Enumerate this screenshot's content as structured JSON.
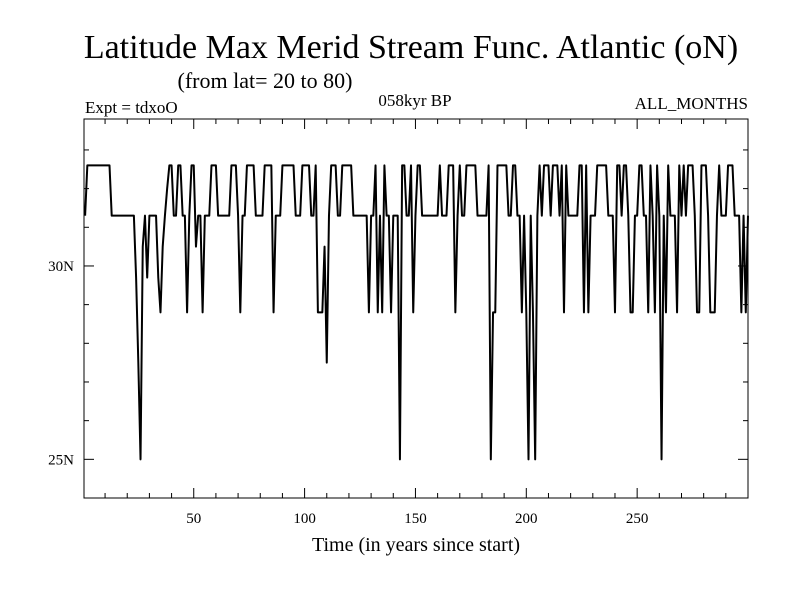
{
  "chart_data": {
    "type": "line",
    "title": "Latitude Max Merid Stream Func. Atlantic (oN)",
    "subtitle": "(from lat= 20 to 80)",
    "experiment_label": "Expt = tdxoO",
    "period_label": "058kyr BP",
    "months_label": "ALL_MONTHS",
    "xlabel": "Time (in years since start)",
    "ylabel": "",
    "xlim": [
      0.5,
      300
    ],
    "ylim": [
      24,
      33.8
    ],
    "x_ticks": [
      50,
      100,
      150,
      200,
      250
    ],
    "x_tick_labels": [
      "50",
      "100",
      "150",
      "200",
      "250"
    ],
    "y_ticks": [
      25,
      30
    ],
    "y_tick_labels": [
      "25N",
      "30N"
    ],
    "y_minor_step": 1,
    "x_minor_step": 10,
    "grid": false,
    "series": [
      {
        "values": [
          31.3,
          32.6,
          32.6,
          32.6,
          32.6,
          32.6,
          32.6,
          32.6,
          32.6,
          32.6,
          32.6,
          32.6,
          31.3,
          31.3,
          31.3,
          31.3,
          31.3,
          31.3,
          31.3,
          31.3,
          31.3,
          31.3,
          31.3,
          29.7,
          27.5,
          25.0,
          30.5,
          31.3,
          29.7,
          31.3,
          31.3,
          31.3,
          31.3,
          29.7,
          28.8,
          30.5,
          31.3,
          32.0,
          32.6,
          32.6,
          31.3,
          31.3,
          32.6,
          32.6,
          31.3,
          31.3,
          28.8,
          31.3,
          32.6,
          32.6,
          30.5,
          31.3,
          31.3,
          28.8,
          31.3,
          31.3,
          31.3,
          32.6,
          32.6,
          32.6,
          31.3,
          31.3,
          31.3,
          31.3,
          31.3,
          31.3,
          32.6,
          32.6,
          32.6,
          31.3,
          28.8,
          31.3,
          31.3,
          32.6,
          32.6,
          32.6,
          32.6,
          31.3,
          31.3,
          31.3,
          31.3,
          32.6,
          32.6,
          32.6,
          32.6,
          28.8,
          31.3,
          31.3,
          31.3,
          32.6,
          32.6,
          32.6,
          32.6,
          32.6,
          32.6,
          31.3,
          31.3,
          31.3,
          32.6,
          32.6,
          32.6,
          32.6,
          31.3,
          31.3,
          32.6,
          28.8,
          28.8,
          28.8,
          30.5,
          27.5,
          31.3,
          32.6,
          32.6,
          32.6,
          31.3,
          31.3,
          32.6,
          32.6,
          32.6,
          32.6,
          32.6,
          31.3,
          31.3,
          31.3,
          31.3,
          31.3,
          31.3,
          31.3,
          28.8,
          31.3,
          31.3,
          32.6,
          28.8,
          31.3,
          28.8,
          32.6,
          31.3,
          31.3,
          28.8,
          31.3,
          31.3,
          31.3,
          25.0,
          32.6,
          32.6,
          31.3,
          31.3,
          32.6,
          28.8,
          31.3,
          32.6,
          32.6,
          31.3,
          31.3,
          31.3,
          31.3,
          31.3,
          31.3,
          31.3,
          31.3,
          32.6,
          31.3,
          31.3,
          31.3,
          32.6,
          32.6,
          32.6,
          28.8,
          31.3,
          32.6,
          31.3,
          31.3,
          32.6,
          32.6,
          32.6,
          32.6,
          32.6,
          31.3,
          31.3,
          31.3,
          31.3,
          31.3,
          32.6,
          25.0,
          28.8,
          28.8,
          32.6,
          32.6,
          32.6,
          32.6,
          32.6,
          31.3,
          31.3,
          32.6,
          32.6,
          31.3,
          31.3,
          28.8,
          31.3,
          28.8,
          25.0,
          31.3,
          28.8,
          25.0,
          31.3,
          32.6,
          31.3,
          32.6,
          32.6,
          32.6,
          31.3,
          32.6,
          32.6,
          32.6,
          31.3,
          32.6,
          28.8,
          32.6,
          31.3,
          31.3,
          31.3,
          31.3,
          31.3,
          32.6,
          32.6,
          28.8,
          32.6,
          28.8,
          31.3,
          31.3,
          31.3,
          32.6,
          32.6,
          32.6,
          32.6,
          32.6,
          31.3,
          31.3,
          31.3,
          28.8,
          32.6,
          32.6,
          31.3,
          32.6,
          32.6,
          31.3,
          28.8,
          28.8,
          31.3,
          31.3,
          32.6,
          32.6,
          31.3,
          31.3,
          28.8,
          32.6,
          31.3,
          28.8,
          32.6,
          31.3,
          25.0,
          31.3,
          28.8,
          32.6,
          31.3,
          31.3,
          31.3,
          28.8,
          32.6,
          31.3,
          32.6,
          31.3,
          32.6,
          32.6,
          32.6,
          31.3,
          28.8,
          28.8,
          32.6,
          32.6,
          32.6,
          31.3,
          28.8,
          28.8,
          28.8,
          31.3,
          32.6,
          31.3,
          31.3,
          31.3,
          32.6,
          32.6,
          32.6,
          31.3,
          31.3,
          31.3,
          28.8,
          31.3,
          28.8,
          31.3
        ]
      }
    ]
  }
}
